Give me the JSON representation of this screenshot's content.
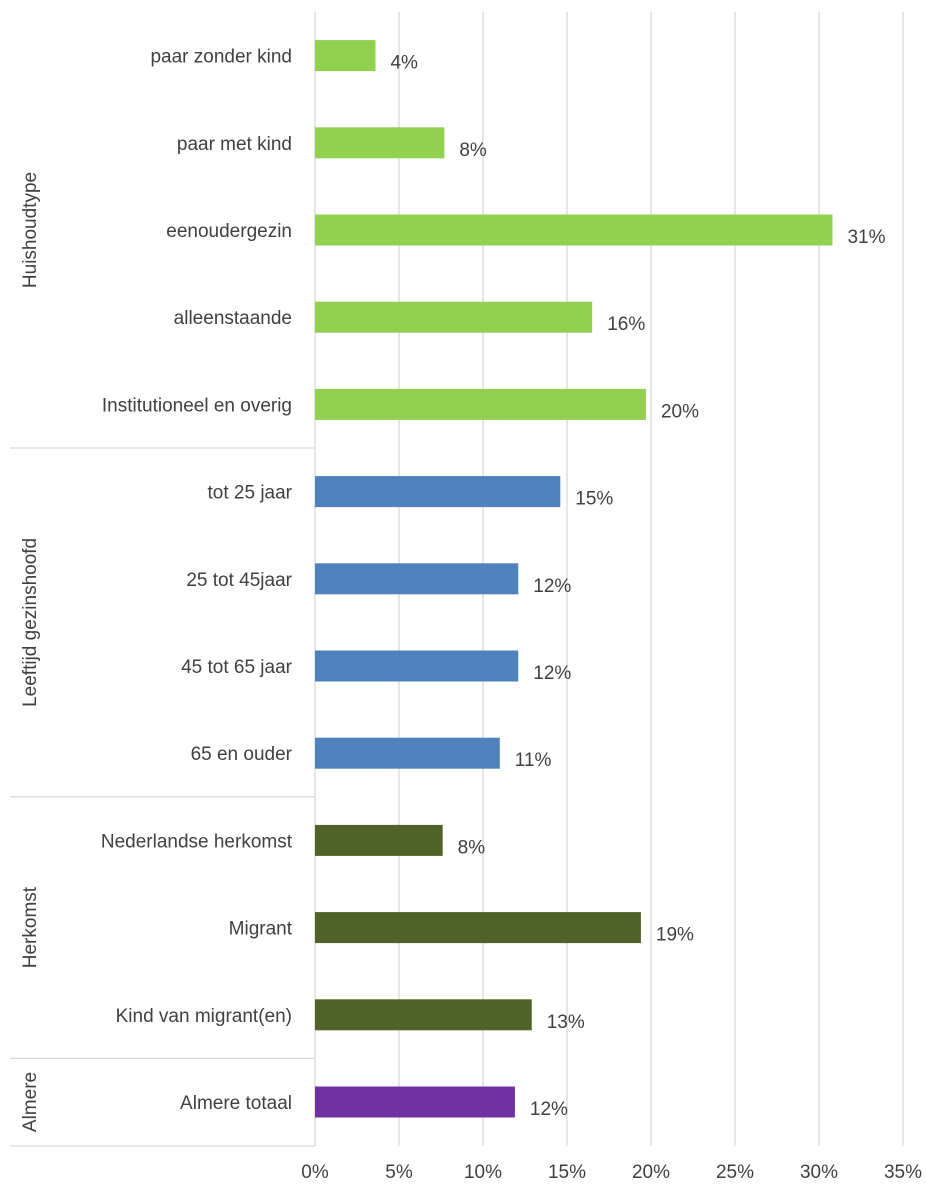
{
  "chart_data": {
    "type": "bar",
    "orientation": "horizontal",
    "grid": true,
    "xlim": [
      0,
      35
    ],
    "x_ticks": [
      "0%",
      "5%",
      "10%",
      "15%",
      "20%",
      "25%",
      "30%",
      "35%"
    ],
    "x_tick_values": [
      0,
      5,
      10,
      15,
      20,
      25,
      30,
      35
    ],
    "groups": [
      {
        "label": "Huishoudtype",
        "color": "#92d050",
        "categories": [
          "paar zonder kind",
          "paar met kind",
          "eenoudergezin",
          "alleenstaande",
          "Institutioneel en overig"
        ],
        "values": [
          3.6,
          7.7,
          30.8,
          16.5,
          19.7
        ],
        "labels": [
          "4%",
          "8%",
          "31%",
          "16%",
          "20%"
        ]
      },
      {
        "label": "Leeftijd gezinshoofd",
        "color": "#4f81bd",
        "categories": [
          "tot 25 jaar",
          "25 tot 45jaar",
          "45 tot 65 jaar",
          "65 en ouder"
        ],
        "values": [
          14.6,
          12.1,
          12.1,
          11.0
        ],
        "labels": [
          "15%",
          "12%",
          "12%",
          "11%"
        ]
      },
      {
        "label": "Herkomst",
        "color": "#4f6228",
        "categories": [
          "Nederlandse herkomst",
          "Migrant",
          "Kind van migrant(en)"
        ],
        "values": [
          7.6,
          19.4,
          12.9
        ],
        "labels": [
          "8%",
          "19%",
          "13%"
        ]
      },
      {
        "label": "Almere",
        "color": "#7030a0",
        "categories": [
          "Almere totaal"
        ],
        "values": [
          11.9
        ],
        "labels": [
          "12%"
        ]
      }
    ]
  }
}
